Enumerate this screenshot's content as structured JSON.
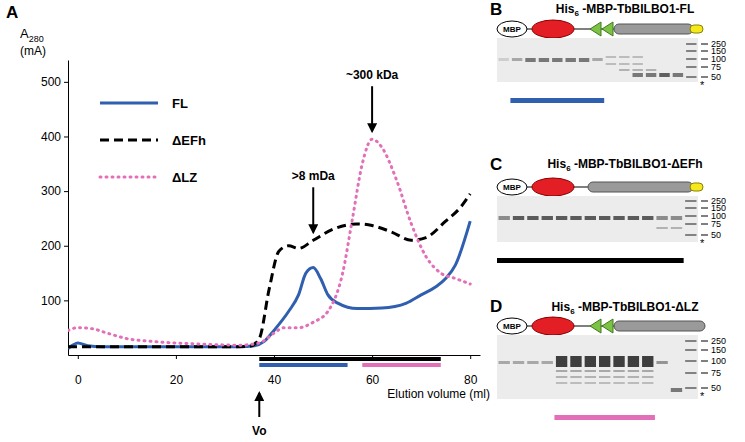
{
  "chart_data": {
    "type": "line",
    "panel_label": "A",
    "y_label": "A",
    "y_label_sub": "280",
    "y_unit": "(mA)",
    "x_label": "Elution volume (ml)",
    "xlim": [
      -2,
      82
    ],
    "xticks": [
      0,
      20,
      40,
      60,
      80
    ],
    "ylim": [
      0,
      540
    ],
    "yticks": [
      100,
      200,
      300,
      400,
      500
    ],
    "legend": "upper left",
    "series": [
      {
        "name": "FL",
        "color": "#2f5fae",
        "line_style": "solid",
        "x": [
          -2,
          -1,
          0,
          2,
          5,
          15,
          25,
          33,
          36,
          38,
          40,
          43,
          45,
          46.5,
          48,
          49.5,
          51,
          53,
          57,
          62,
          67,
          70,
          73,
          75,
          77,
          80
        ],
        "values": [
          12,
          18,
          22,
          17,
          15,
          15,
          15,
          15,
          17,
          25,
          45,
          80,
          110,
          150,
          160,
          140,
          110,
          95,
          85,
          86,
          95,
          110,
          125,
          140,
          165,
          245
        ]
      },
      {
        "name": "ΔEFh",
        "color": "#000000",
        "line_style": "dashed",
        "x": [
          -2,
          0,
          10,
          20,
          30,
          35,
          37,
          39,
          41,
          43,
          45,
          48,
          52,
          57,
          60,
          64,
          68,
          71,
          75,
          78,
          80
        ],
        "values": [
          15,
          15,
          15,
          15,
          15,
          16,
          30,
          120,
          190,
          200,
          195,
          210,
          230,
          240,
          237,
          225,
          210,
          215,
          245,
          270,
          295
        ]
      },
      {
        "name": "ΔLZ",
        "color": "#e26fb8",
        "line_style": "dotted",
        "x": [
          -2,
          0,
          3,
          6,
          10,
          15,
          25,
          33,
          37,
          40,
          42,
          45,
          48,
          51,
          54,
          56,
          58,
          60,
          62,
          65,
          68,
          71,
          74,
          77,
          80
        ],
        "values": [
          45,
          50,
          48,
          40,
          30,
          25,
          20,
          18,
          22,
          40,
          50,
          50,
          60,
          80,
          150,
          250,
          350,
          395,
          380,
          320,
          240,
          180,
          150,
          140,
          130
        ]
      }
    ],
    "fractions": [
      {
        "color": "#000000",
        "start": 37,
        "end": 74
      },
      {
        "color": "#2f5fae",
        "start": 37,
        "end": 55
      },
      {
        "color": "#e26fb8",
        "start": 58,
        "end": 74
      }
    ],
    "annotations": [
      {
        "text": ">8 mDa",
        "x": 48
      },
      {
        "text": "~300 kDa",
        "x": 60
      },
      {
        "text": "Vo",
        "x": 37
      }
    ]
  },
  "panels": [
    {
      "label": "B",
      "title": {
        "pre": "His",
        "sub": "6",
        "post": " -MBP-TbBILBO1-FL"
      },
      "mbp": "MBP",
      "efh": true,
      "lz": true,
      "markers": [
        250,
        150,
        100,
        75,
        50
      ],
      "asterisk": "*",
      "bar_color": "#2f5fae"
    },
    {
      "label": "C",
      "title": {
        "pre": "His",
        "sub": "6",
        "post": " -MBP-TbBILBO1-ΔEFh"
      },
      "mbp": "MBP",
      "efh": false,
      "lz": true,
      "markers": [
        250,
        150,
        100,
        75,
        50
      ],
      "asterisk": "*",
      "bar_color": "#000000"
    },
    {
      "label": "D",
      "title": {
        "pre": "His",
        "sub": "6",
        "post": " -MBP-TbBILBO1-ΔLZ"
      },
      "mbp": "MBP",
      "efh": true,
      "lz": false,
      "markers": [
        250,
        150,
        100,
        75,
        50
      ],
      "asterisk": "*",
      "bar_color": "#e26fb8"
    }
  ]
}
